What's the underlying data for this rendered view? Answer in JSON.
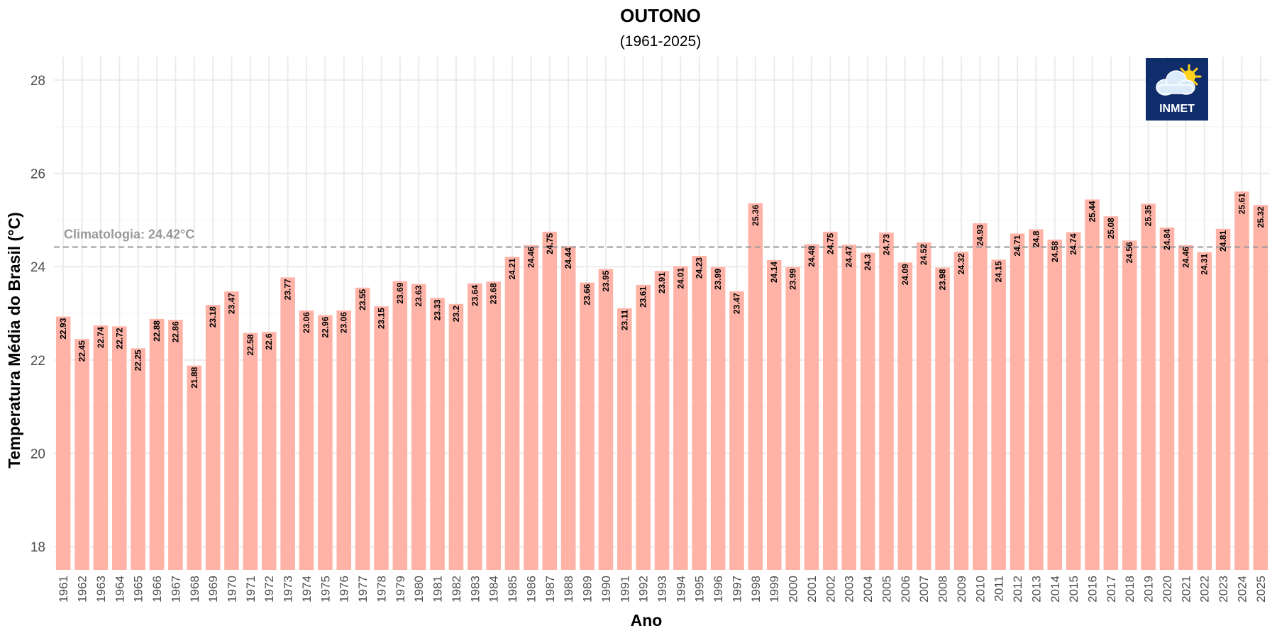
{
  "chart_data": {
    "type": "bar",
    "title": "OUTONO",
    "subtitle": "(1961-2025)",
    "xlabel": "Ano",
    "ylabel": "Temperatura Média do Brasil (°C)",
    "ylim": [
      17.5,
      28.5
    ],
    "yticks": [
      18,
      20,
      22,
      24,
      26,
      28
    ],
    "grid": true,
    "bar_color": "#FFB3A7",
    "categories": [
      "1961",
      "1962",
      "1963",
      "1964",
      "1965",
      "1966",
      "1967",
      "1968",
      "1969",
      "1970",
      "1971",
      "1972",
      "1973",
      "1974",
      "1975",
      "1976",
      "1977",
      "1978",
      "1979",
      "1980",
      "1981",
      "1982",
      "1983",
      "1984",
      "1985",
      "1986",
      "1987",
      "1988",
      "1989",
      "1990",
      "1991",
      "1992",
      "1993",
      "1994",
      "1995",
      "1996",
      "1997",
      "1998",
      "1999",
      "2000",
      "2001",
      "2002",
      "2003",
      "2004",
      "2005",
      "2006",
      "2007",
      "2008",
      "2009",
      "2010",
      "2011",
      "2012",
      "2013",
      "2014",
      "2015",
      "2016",
      "2017",
      "2018",
      "2019",
      "2020",
      "2021",
      "2022",
      "2023",
      "2024",
      "2025"
    ],
    "values": [
      22.93,
      22.45,
      22.74,
      22.72,
      22.25,
      22.88,
      22.86,
      21.88,
      23.18,
      23.47,
      22.58,
      22.6,
      23.77,
      23.06,
      22.96,
      23.06,
      23.55,
      23.15,
      23.69,
      23.63,
      23.33,
      23.2,
      23.64,
      23.68,
      24.21,
      24.46,
      24.75,
      24.44,
      23.66,
      23.95,
      23.11,
      23.61,
      23.91,
      24.01,
      24.23,
      23.99,
      23.47,
      25.36,
      24.14,
      23.99,
      24.48,
      24.75,
      24.47,
      24.3,
      24.73,
      24.09,
      24.52,
      23.98,
      24.32,
      24.93,
      24.15,
      24.71,
      24.8,
      24.58,
      24.74,
      25.44,
      25.08,
      24.56,
      25.35,
      24.84,
      24.46,
      24.31,
      24.81,
      25.61,
      25.32
    ],
    "labels": [
      "22.93",
      "22.45",
      "22.74",
      "22.72",
      "22.25",
      "22.88",
      "22.86",
      "21.88",
      "23.18",
      "23.47",
      "22.58",
      "22.6",
      "23.77",
      "23.06",
      "22.96",
      "23.06",
      "23.55",
      "23.15",
      "23.69",
      "23.63",
      "23.33",
      "23.2",
      "23.64",
      "23.68",
      "24.21",
      "24.46",
      "24.75",
      "24.44",
      "23.66",
      "23.95",
      "23.11",
      "23.61",
      "23.91",
      "24.01",
      "24.23",
      "23.99",
      "23.47",
      "25.36",
      "24.14",
      "23.99",
      "24.48",
      "24.75",
      "24.47",
      "24.3",
      "24.73",
      "24.09",
      "24.52",
      "23.98",
      "24.32",
      "24.93",
      "24.15",
      "24.71",
      "24.8",
      "24.58",
      "24.74",
      "25.44",
      "25.08",
      "24.56",
      "25.35",
      "24.84",
      "24.46",
      "24.31",
      "24.81",
      "25.61",
      "25.32"
    ],
    "reference_line": {
      "value": 24.42,
      "label": "Climatologia: 24.42°C",
      "style": "dashed",
      "color": "#999999"
    }
  },
  "logo": {
    "text": "INMET",
    "background": "#0F2C6B",
    "icon": "cloud-sun-icon"
  }
}
